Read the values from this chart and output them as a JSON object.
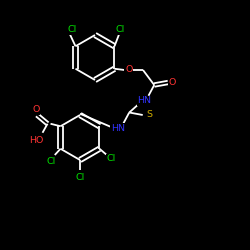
{
  "background": "#000000",
  "bond_color": "#ffffff",
  "Cl_color": "#00dd00",
  "O_color": "#ff3333",
  "N_color": "#3333ff",
  "S_color": "#ccaa00",
  "figsize": [
    2.5,
    2.5
  ],
  "dpi": 100,
  "xlim": [
    0,
    10
  ],
  "ylim": [
    0,
    10
  ],
  "lw": 1.3,
  "fs": 6.8
}
